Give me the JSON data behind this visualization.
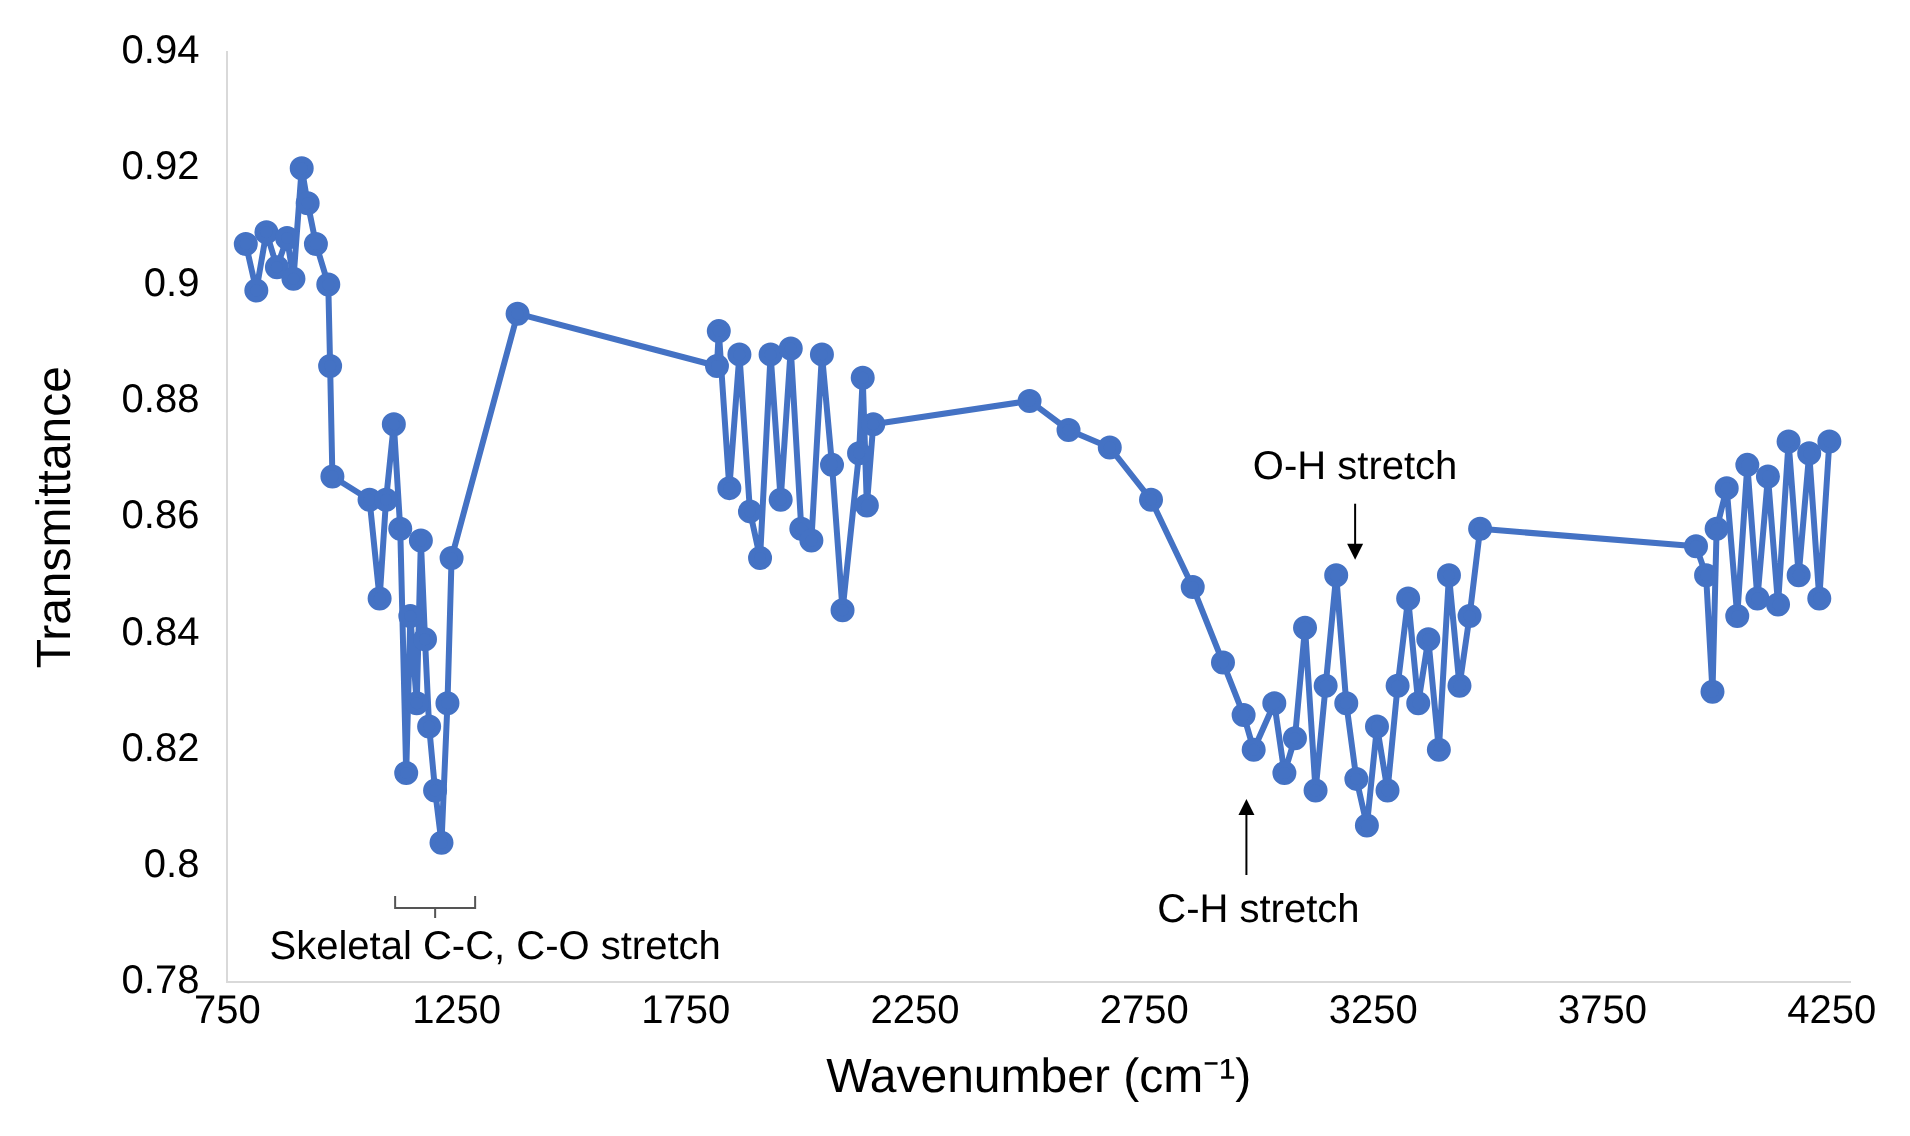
{
  "chart_data": {
    "type": "line",
    "xlabel": "Wavenumber (cm⁻¹)",
    "ylabel": "Transmittance",
    "xlim": [
      750,
      4290
    ],
    "xticks": [
      750,
      1250,
      1750,
      2250,
      2750,
      3250,
      3750,
      4250
    ],
    "ylim": [
      0.78,
      0.94
    ],
    "yticks": [
      0.78,
      0.8,
      0.82,
      0.84,
      0.86,
      0.88,
      0.9,
      0.92,
      0.94
    ],
    "grid": false,
    "legend": false,
    "marker": "circle",
    "line_style": "solid",
    "series": [
      {
        "color": "#4472c4",
        "x": [
          790,
          813,
          835,
          858,
          880,
          894,
          912,
          925,
          943,
          970,
          974,
          979,
          1060,
          1082,
          1096,
          1113,
          1127,
          1140,
          1149,
          1163,
          1172,
          1181,
          1190,
          1203,
          1217,
          1230,
          1239,
          1383,
          1818,
          1822,
          1845,
          1867,
          1890,
          1912,
          1935,
          1957,
          1979,
          2002,
          2024,
          2047,
          2069,
          2092,
          2128,
          2136,
          2145,
          2159,
          2500,
          2585,
          2675,
          2765,
          2856,
          2922,
          2967,
          2989,
          3034,
          3056,
          3079,
          3101,
          3124,
          3146,
          3169,
          3191,
          3213,
          3236,
          3258,
          3281,
          3303,
          3326,
          3348,
          3370,
          3393,
          3415,
          3438,
          3460,
          3483,
          3954,
          3976,
          3990,
          3999,
          4021,
          4044,
          4066,
          4088,
          4111,
          4133,
          4156,
          4178,
          4201,
          4223,
          4245
        ],
        "values": [
          0.907,
          0.899,
          0.909,
          0.903,
          0.908,
          0.901,
          0.92,
          0.914,
          0.907,
          0.9,
          0.886,
          0.867,
          0.863,
          0.846,
          0.863,
          0.876,
          0.858,
          0.816,
          0.843,
          0.828,
          0.856,
          0.839,
          0.824,
          0.813,
          0.804,
          0.828,
          0.853,
          0.895,
          0.886,
          0.892,
          0.865,
          0.888,
          0.861,
          0.853,
          0.888,
          0.863,
          0.889,
          0.858,
          0.856,
          0.888,
          0.869,
          0.844,
          0.871,
          0.884,
          0.862,
          0.876,
          0.88,
          0.875,
          0.872,
          0.863,
          0.848,
          0.835,
          0.826,
          0.82,
          0.828,
          0.816,
          0.822,
          0.841,
          0.813,
          0.831,
          0.85,
          0.828,
          0.815,
          0.807,
          0.824,
          0.813,
          0.831,
          0.846,
          0.828,
          0.839,
          0.82,
          0.85,
          0.831,
          0.843,
          0.858,
          0.855,
          0.85,
          0.83,
          0.858,
          0.865,
          0.843,
          0.869,
          0.846,
          0.867,
          0.845,
          0.873,
          0.85,
          0.871,
          0.846,
          0.873
        ]
      }
    ],
    "annotations": [
      "O-H stretch",
      "C-H stretch",
      "Skeletal C-C, C-O stretch"
    ]
  }
}
